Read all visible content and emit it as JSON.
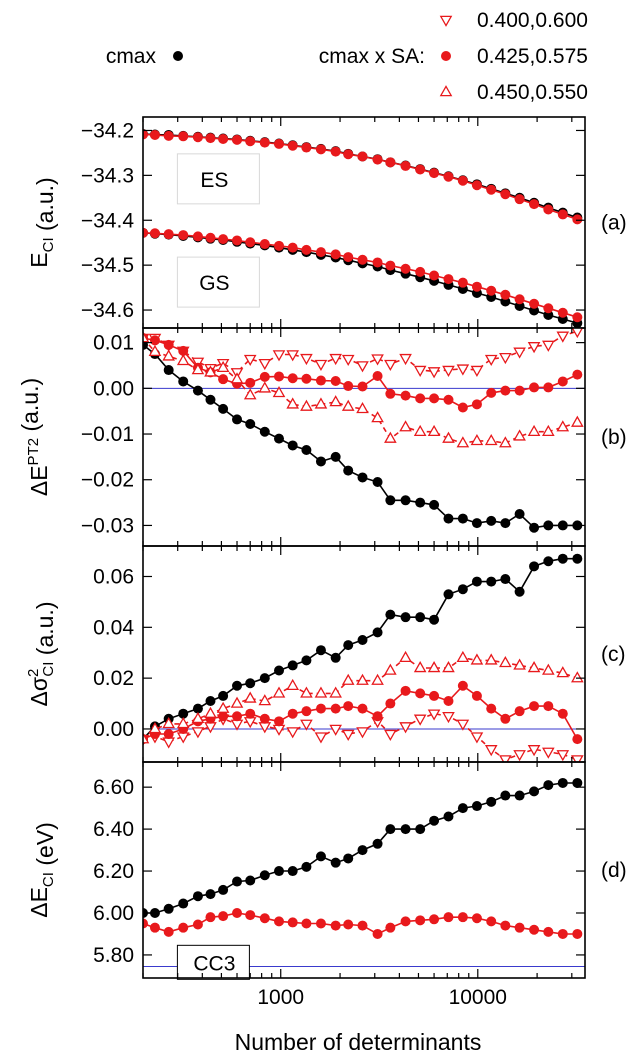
{
  "legend": {
    "cmax_label": "cmax",
    "sa_label": "cmax x SA:",
    "sa_entries": [
      "0.400,0.600",
      "0.425,0.575",
      "0.450,0.550"
    ]
  },
  "colors": {
    "black": "#000000",
    "red": "#e8191c",
    "reference": "#3a3acd"
  },
  "chart_data": {
    "type": "line",
    "x_scale": "log",
    "xlim": [
      200,
      35000
    ],
    "xticks": [
      1000,
      10000
    ],
    "xtick_labels": [
      "1000",
      "10000"
    ],
    "xlabel": "Number of determinants",
    "x": [
      200,
      230,
      270,
      320,
      380,
      440,
      510,
      600,
      700,
      830,
      980,
      1150,
      1350,
      1600,
      1900,
      2200,
      2600,
      3100,
      3600,
      4300,
      5100,
      6000,
      7100,
      8400,
      9900,
      11700,
      13800,
      16300,
      19300,
      22800,
      27000,
      32000
    ],
    "panels": [
      {
        "tag": "(a)",
        "ylabel_main": "E",
        "ylabel_sub": "CI",
        "ylabel_unit": " (a.u.)",
        "ylim": [
          -34.64,
          -34.17
        ],
        "yticks": [
          -34.2,
          -34.3,
          -34.4,
          -34.5,
          -34.6
        ],
        "ytick_labels": [
          "−34.2",
          "−34.3",
          "−34.4",
          "−34.5",
          "−34.6"
        ],
        "annotations": [
          {
            "text": "ES",
            "x_at": 450,
            "y_at": -34.31
          },
          {
            "text": "GS",
            "x_at": 450,
            "y_at": -34.54
          }
        ],
        "series": [
          {
            "name": "cmax ES",
            "color": "black",
            "marker": "circle",
            "line": "solid",
            "values": [
              -34.208,
              -34.209,
              -34.21,
              -34.212,
              -34.214,
              -34.216,
              -34.218,
              -34.22,
              -34.223,
              -34.226,
              -34.229,
              -34.233,
              -34.237,
              -34.241,
              -34.246,
              -34.252,
              -34.258,
              -34.264,
              -34.271,
              -34.278,
              -34.286,
              -34.294,
              -34.302,
              -34.311,
              -34.32,
              -34.33,
              -34.34,
              -34.35,
              -34.361,
              -34.372,
              -34.383,
              -34.394
            ]
          },
          {
            "name": "SA ES",
            "color": "red",
            "marker": "circle",
            "line": "solid",
            "values": [
              -34.209,
              -34.21,
              -34.212,
              -34.213,
              -34.215,
              -34.217,
              -34.219,
              -34.221,
              -34.224,
              -34.227,
              -34.23,
              -34.234,
              -34.238,
              -34.242,
              -34.247,
              -34.253,
              -34.258,
              -34.265,
              -34.271,
              -34.279,
              -34.287,
              -34.295,
              -34.303,
              -34.312,
              -34.322,
              -34.332,
              -34.342,
              -34.353,
              -34.364,
              -34.376,
              -34.387,
              -34.398
            ]
          },
          {
            "name": "cmax GS",
            "color": "black",
            "marker": "circle",
            "line": "solid",
            "values": [
              -34.428,
              -34.43,
              -34.432,
              -34.435,
              -34.438,
              -34.441,
              -34.444,
              -34.448,
              -34.452,
              -34.456,
              -34.461,
              -34.466,
              -34.471,
              -34.477,
              -34.483,
              -34.489,
              -34.496,
              -34.503,
              -34.511,
              -34.519,
              -34.527,
              -34.535,
              -34.544,
              -34.553,
              -34.562,
              -34.571,
              -34.581,
              -34.591,
              -34.601,
              -34.611,
              -34.62,
              -34.629
            ]
          },
          {
            "name": "SA GS",
            "color": "red",
            "marker": "circle",
            "line": "solid",
            "values": [
              -34.428,
              -34.429,
              -34.431,
              -34.433,
              -34.436,
              -34.439,
              -34.442,
              -34.445,
              -34.449,
              -34.453,
              -34.457,
              -34.461,
              -34.466,
              -34.471,
              -34.476,
              -34.482,
              -34.488,
              -34.494,
              -34.501,
              -34.508,
              -34.515,
              -34.523,
              -34.531,
              -34.539,
              -34.548,
              -34.557,
              -34.566,
              -34.576,
              -34.586,
              -34.596,
              -34.606,
              -34.616
            ]
          }
        ]
      },
      {
        "tag": "(b)",
        "ylabel_main": "ΔE",
        "ylabel_sup": "PT2",
        "ylabel_unit": " (a.u.)",
        "ylim": [
          -0.0345,
          0.0132
        ],
        "yticks": [
          0.01,
          0.0,
          -0.01,
          -0.02,
          -0.03
        ],
        "ytick_labels": [
          "0.01",
          "0.00",
          "−0.01",
          "−0.02",
          "−0.03"
        ],
        "hline": 0.0,
        "series": [
          {
            "name": "cmax",
            "color": "black",
            "marker": "circle",
            "line": "solid",
            "values": [
              0.0095,
              0.0075,
              0.004,
              0.0015,
              -0.0005,
              -0.0025,
              -0.0045,
              -0.0068,
              -0.0078,
              -0.0095,
              -0.011,
              -0.0125,
              -0.0135,
              -0.016,
              -0.015,
              -0.018,
              -0.0195,
              -0.0205,
              -0.0245,
              -0.0245,
              -0.025,
              -0.0255,
              -0.0285,
              -0.0285,
              -0.0295,
              -0.029,
              -0.0295,
              -0.0275,
              -0.0305,
              -0.03,
              -0.03,
              -0.03
            ]
          },
          {
            "name": "0.400,0.600",
            "color": "red",
            "marker": "triangle-down",
            "line": "dashed",
            "values": [
              0.011,
              0.011,
              0.0095,
              0.0082,
              0.0058,
              0.0044,
              0.0055,
              0.0035,
              0.0064,
              0.0055,
              0.0074,
              0.0074,
              0.0066,
              0.0053,
              0.0066,
              0.0064,
              0.005,
              0.0065,
              0.0053,
              0.0066,
              0.004,
              0.0037,
              0.004,
              0.0043,
              0.004,
              0.0064,
              0.0068,
              0.008,
              0.0092,
              0.0095,
              0.0115,
              0.0125
            ]
          },
          {
            "name": "0.425,0.575",
            "color": "red",
            "marker": "circle",
            "line": "solid",
            "values": [
              0.011,
              0.0105,
              0.0095,
              0.0082,
              0.0045,
              0.0035,
              0.002,
              0.001,
              0.0012,
              0.0025,
              0.0026,
              0.0022,
              0.0021,
              0.0017,
              0.0016,
              0.0005,
              0.0004,
              0.0027,
              -0.0012,
              -0.0016,
              -0.0022,
              -0.0022,
              -0.0025,
              -0.0042,
              -0.0035,
              -0.001,
              -0.0005,
              -0.0005,
              0.0002,
              0.0002,
              0.0015,
              0.003
            ]
          },
          {
            "name": "0.450,0.550",
            "color": "red",
            "marker": "triangle-up",
            "line": "dashed",
            "values": [
              0.011,
              0.008,
              0.007,
              0.006,
              0.004,
              0.0035,
              0.0045,
              0.002,
              -0.0015,
              0.0,
              -0.001,
              -0.0035,
              -0.004,
              -0.0035,
              -0.003,
              -0.004,
              -0.0045,
              -0.0065,
              -0.011,
              -0.0085,
              -0.0095,
              -0.0095,
              -0.011,
              -0.012,
              -0.0115,
              -0.0115,
              -0.012,
              -0.0105,
              -0.0095,
              -0.0095,
              -0.0085,
              -0.0075
            ]
          }
        ]
      },
      {
        "tag": "(c)",
        "ylabel_main": "Δσ",
        "ylabel_sup": "2",
        "ylabel_sub": "CI",
        "ylabel_unit": " (a.u.)",
        "ylim": [
          -0.013,
          0.072
        ],
        "yticks": [
          0.06,
          0.04,
          0.02,
          0.0
        ],
        "ytick_labels": [
          "0.06",
          "0.04",
          "0.02",
          "0.00"
        ],
        "hline": 0.0,
        "series": [
          {
            "name": "cmax",
            "color": "black",
            "marker": "circle",
            "line": "solid",
            "values": [
              -0.004,
              0.001,
              0.004,
              0.006,
              0.008,
              0.011,
              0.013,
              0.017,
              0.018,
              0.02,
              0.023,
              0.025,
              0.027,
              0.031,
              0.028,
              0.033,
              0.035,
              0.038,
              0.045,
              0.044,
              0.044,
              0.043,
              0.053,
              0.055,
              0.058,
              0.058,
              0.059,
              0.054,
              0.064,
              0.066,
              0.067,
              0.067
            ]
          },
          {
            "name": "0.400,0.600",
            "color": "red",
            "marker": "triangle-down",
            "line": "dashed",
            "values": [
              -0.004,
              -0.003,
              -0.005,
              -0.003,
              -0.001,
              0.001,
              0.004,
              0.002,
              0.003,
              0.001,
              0.0,
              -0.001,
              0.002,
              -0.003,
              0.0,
              -0.002,
              -0.001,
              0.003,
              -0.002,
              0.001,
              0.004,
              0.006,
              0.005,
              0.002,
              -0.003,
              -0.008,
              -0.012,
              -0.01,
              -0.008,
              -0.009,
              -0.01,
              -0.012
            ]
          },
          {
            "name": "0.425,0.575",
            "color": "red",
            "marker": "circle",
            "line": "solid",
            "values": [
              -0.004,
              -0.002,
              -0.002,
              0.0,
              0.003,
              0.004,
              0.005,
              0.005,
              0.006,
              0.004,
              0.003,
              0.006,
              0.007,
              0.008,
              0.008,
              0.009,
              0.008,
              0.005,
              0.01,
              0.015,
              0.014,
              0.013,
              0.011,
              0.017,
              0.013,
              0.008,
              0.004,
              0.007,
              0.009,
              0.009,
              0.006,
              -0.004
            ]
          },
          {
            "name": "0.450,0.550",
            "color": "red",
            "marker": "triangle-up",
            "line": "dashed",
            "values": [
              -0.004,
              0.0,
              0.002,
              0.002,
              0.004,
              0.006,
              0.008,
              0.01,
              0.012,
              0.011,
              0.014,
              0.017,
              0.014,
              0.014,
              0.014,
              0.019,
              0.019,
              0.019,
              0.023,
              0.028,
              0.024,
              0.024,
              0.024,
              0.028,
              0.027,
              0.027,
              0.026,
              0.025,
              0.024,
              0.023,
              0.022,
              0.02
            ]
          }
        ]
      },
      {
        "tag": "(d)",
        "ylabel_main": "ΔE",
        "ylabel_sub": "CI",
        "ylabel_unit": " (eV)",
        "ylim": [
          5.69,
          6.72
        ],
        "yticks": [
          6.6,
          6.4,
          6.2,
          6.0,
          5.8
        ],
        "ytick_labels": [
          "6.60",
          "6.40",
          "6.20",
          "6.00",
          "5.80"
        ],
        "hline": 5.745,
        "annotations": [
          {
            "text": "CC3",
            "x_at": 450,
            "y_at": 5.76
          }
        ],
        "series": [
          {
            "name": "cmax",
            "color": "black",
            "marker": "circle",
            "line": "solid",
            "values": [
              6.0,
              6.0,
              6.02,
              6.045,
              6.08,
              6.09,
              6.11,
              6.15,
              6.155,
              6.18,
              6.2,
              6.2,
              6.22,
              6.27,
              6.24,
              6.26,
              6.3,
              6.33,
              6.4,
              6.4,
              6.4,
              6.44,
              6.46,
              6.5,
              6.51,
              6.53,
              6.56,
              6.56,
              6.58,
              6.61,
              6.62,
              6.62
            ]
          },
          {
            "name": "0.425,0.575",
            "color": "red",
            "marker": "circle",
            "line": "solid",
            "values": [
              5.95,
              5.93,
              5.91,
              5.93,
              5.945,
              5.98,
              5.985,
              6.0,
              5.99,
              5.975,
              5.96,
              5.955,
              5.95,
              5.95,
              5.94,
              5.945,
              5.94,
              5.9,
              5.93,
              5.96,
              5.965,
              5.97,
              5.98,
              5.98,
              5.975,
              5.96,
              5.94,
              5.93,
              5.92,
              5.91,
              5.9,
              5.9
            ]
          }
        ]
      }
    ]
  }
}
